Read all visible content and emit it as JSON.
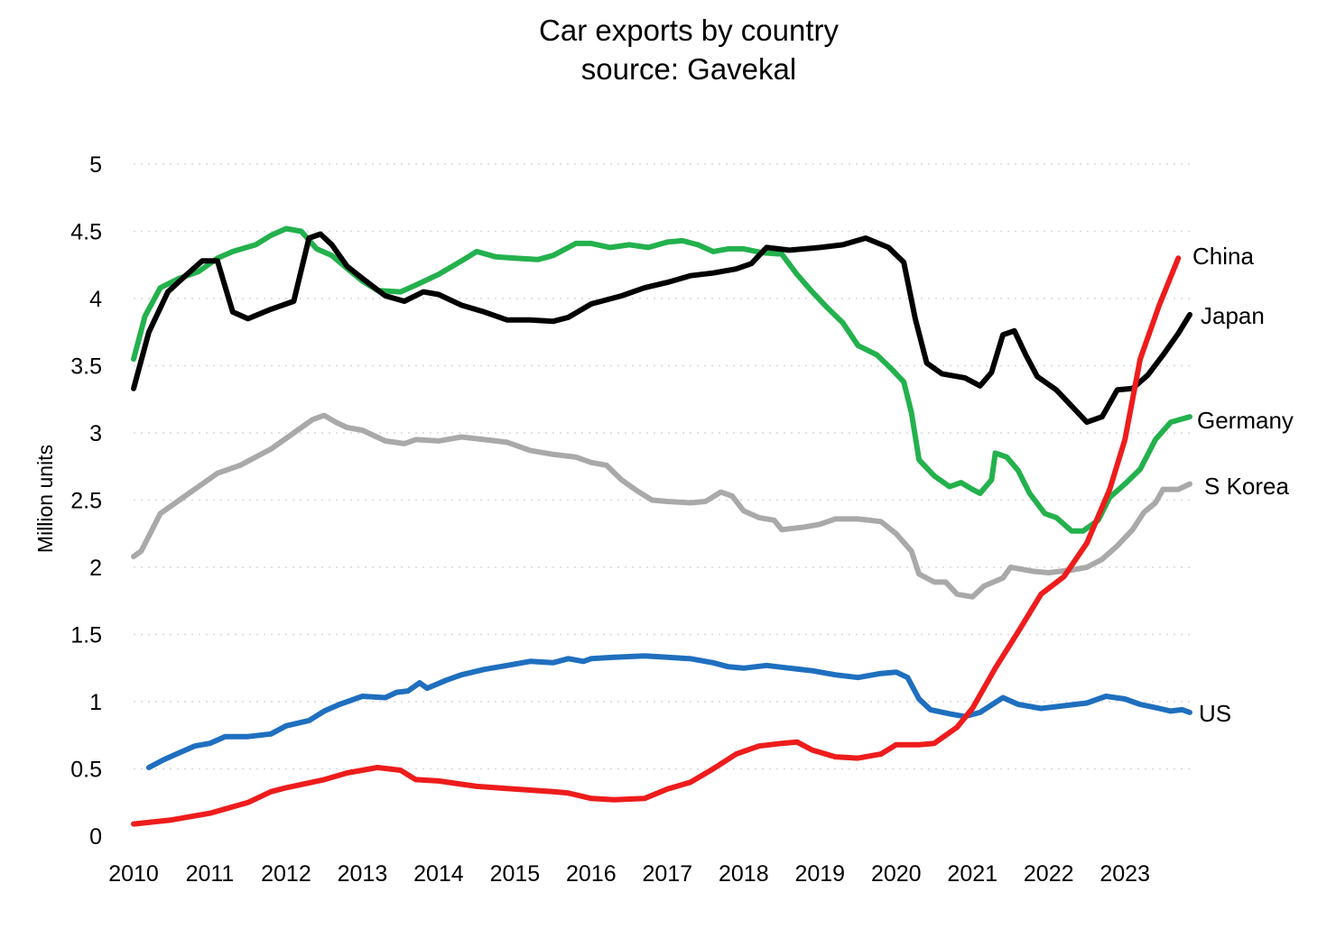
{
  "chart_data": {
    "type": "line",
    "title": "Car exports by country",
    "subtitle": "source: Gavekal",
    "xlabel": "",
    "ylabel": "Million units",
    "xlim": [
      2010,
      2023.85
    ],
    "ylim": [
      0,
      5
    ],
    "grid": true,
    "legend": "none (series labels at line ends)",
    "x_ticks": [
      "2010",
      "2011",
      "2012",
      "2013",
      "2014",
      "2015",
      "2016",
      "2017",
      "2018",
      "2019",
      "2020",
      "2021",
      "2022",
      "2023"
    ],
    "y_ticks": [
      "0",
      "0.5",
      "1",
      "1.5",
      "2",
      "2.5",
      "3",
      "3.5",
      "4",
      "4.5",
      "5"
    ],
    "series": [
      {
        "name": "China",
        "color": "#ee1c1c",
        "points": [
          [
            2010.0,
            0.09
          ],
          [
            2010.5,
            0.12
          ],
          [
            2011.0,
            0.17
          ],
          [
            2011.5,
            0.25
          ],
          [
            2011.8,
            0.33
          ],
          [
            2012.0,
            0.36
          ],
          [
            2012.5,
            0.42
          ],
          [
            2012.8,
            0.47
          ],
          [
            2013.2,
            0.51
          ],
          [
            2013.5,
            0.49
          ],
          [
            2013.7,
            0.42
          ],
          [
            2014.0,
            0.41
          ],
          [
            2014.5,
            0.37
          ],
          [
            2015.0,
            0.35
          ],
          [
            2015.5,
            0.33
          ],
          [
            2015.7,
            0.32
          ],
          [
            2016.0,
            0.28
          ],
          [
            2016.3,
            0.27
          ],
          [
            2016.7,
            0.28
          ],
          [
            2017.0,
            0.35
          ],
          [
            2017.3,
            0.4
          ],
          [
            2017.6,
            0.5
          ],
          [
            2017.9,
            0.61
          ],
          [
            2018.2,
            0.67
          ],
          [
            2018.5,
            0.69
          ],
          [
            2018.7,
            0.7
          ],
          [
            2018.9,
            0.64
          ],
          [
            2019.2,
            0.59
          ],
          [
            2019.5,
            0.58
          ],
          [
            2019.8,
            0.61
          ],
          [
            2020.0,
            0.68
          ],
          [
            2020.3,
            0.68
          ],
          [
            2020.5,
            0.69
          ],
          [
            2020.8,
            0.81
          ],
          [
            2021.0,
            0.95
          ],
          [
            2021.3,
            1.25
          ],
          [
            2021.6,
            1.52
          ],
          [
            2021.9,
            1.8
          ],
          [
            2022.2,
            1.93
          ],
          [
            2022.5,
            2.18
          ],
          [
            2022.8,
            2.58
          ],
          [
            2023.0,
            2.95
          ],
          [
            2023.2,
            3.55
          ],
          [
            2023.45,
            3.95
          ],
          [
            2023.7,
            4.3
          ]
        ]
      },
      {
        "name": "Japan",
        "color": "#000000",
        "points": [
          [
            2010.0,
            3.33
          ],
          [
            2010.2,
            3.75
          ],
          [
            2010.45,
            4.05
          ],
          [
            2010.7,
            4.18
          ],
          [
            2010.9,
            4.28
          ],
          [
            2011.1,
            4.28
          ],
          [
            2011.3,
            3.9
          ],
          [
            2011.5,
            3.85
          ],
          [
            2011.8,
            3.92
          ],
          [
            2012.1,
            3.98
          ],
          [
            2012.3,
            4.45
          ],
          [
            2012.45,
            4.48
          ],
          [
            2012.6,
            4.4
          ],
          [
            2012.8,
            4.24
          ],
          [
            2013.0,
            4.15
          ],
          [
            2013.3,
            4.02
          ],
          [
            2013.55,
            3.98
          ],
          [
            2013.8,
            4.05
          ],
          [
            2014.0,
            4.03
          ],
          [
            2014.3,
            3.95
          ],
          [
            2014.6,
            3.9
          ],
          [
            2014.9,
            3.84
          ],
          [
            2015.2,
            3.84
          ],
          [
            2015.5,
            3.83
          ],
          [
            2015.7,
            3.86
          ],
          [
            2016.0,
            3.96
          ],
          [
            2016.4,
            4.02
          ],
          [
            2016.7,
            4.08
          ],
          [
            2017.0,
            4.12
          ],
          [
            2017.3,
            4.17
          ],
          [
            2017.6,
            4.19
          ],
          [
            2017.9,
            4.22
          ],
          [
            2018.1,
            4.26
          ],
          [
            2018.3,
            4.38
          ],
          [
            2018.6,
            4.36
          ],
          [
            2019.0,
            4.38
          ],
          [
            2019.3,
            4.4
          ],
          [
            2019.6,
            4.45
          ],
          [
            2019.9,
            4.38
          ],
          [
            2020.1,
            4.27
          ],
          [
            2020.25,
            3.85
          ],
          [
            2020.4,
            3.52
          ],
          [
            2020.6,
            3.44
          ],
          [
            2020.9,
            3.41
          ],
          [
            2021.1,
            3.35
          ],
          [
            2021.25,
            3.45
          ],
          [
            2021.4,
            3.73
          ],
          [
            2021.55,
            3.76
          ],
          [
            2021.7,
            3.58
          ],
          [
            2021.85,
            3.42
          ],
          [
            2022.1,
            3.32
          ],
          [
            2022.3,
            3.2
          ],
          [
            2022.5,
            3.08
          ],
          [
            2022.7,
            3.12
          ],
          [
            2022.9,
            3.32
          ],
          [
            2023.1,
            3.33
          ],
          [
            2023.3,
            3.43
          ],
          [
            2023.5,
            3.58
          ],
          [
            2023.7,
            3.74
          ],
          [
            2023.85,
            3.88
          ]
        ]
      },
      {
        "name": "Germany",
        "color": "#23b14d",
        "points": [
          [
            2010.0,
            3.55
          ],
          [
            2010.15,
            3.87
          ],
          [
            2010.35,
            4.08
          ],
          [
            2010.6,
            4.15
          ],
          [
            2010.85,
            4.2
          ],
          [
            2011.1,
            4.3
          ],
          [
            2011.3,
            4.35
          ],
          [
            2011.6,
            4.4
          ],
          [
            2011.8,
            4.47
          ],
          [
            2012.0,
            4.52
          ],
          [
            2012.2,
            4.5
          ],
          [
            2012.4,
            4.37
          ],
          [
            2012.6,
            4.32
          ],
          [
            2012.85,
            4.2
          ],
          [
            2013.0,
            4.13
          ],
          [
            2013.2,
            4.06
          ],
          [
            2013.5,
            4.05
          ],
          [
            2013.7,
            4.1
          ],
          [
            2014.0,
            4.18
          ],
          [
            2014.3,
            4.28
          ],
          [
            2014.5,
            4.35
          ],
          [
            2014.75,
            4.31
          ],
          [
            2015.0,
            4.3
          ],
          [
            2015.3,
            4.29
          ],
          [
            2015.5,
            4.32
          ],
          [
            2015.8,
            4.41
          ],
          [
            2016.0,
            4.41
          ],
          [
            2016.25,
            4.38
          ],
          [
            2016.5,
            4.4
          ],
          [
            2016.75,
            4.38
          ],
          [
            2017.0,
            4.42
          ],
          [
            2017.2,
            4.43
          ],
          [
            2017.4,
            4.4
          ],
          [
            2017.6,
            4.35
          ],
          [
            2017.8,
            4.37
          ],
          [
            2018.0,
            4.37
          ],
          [
            2018.25,
            4.34
          ],
          [
            2018.5,
            4.33
          ],
          [
            2018.7,
            4.18
          ],
          [
            2018.9,
            4.05
          ],
          [
            2019.1,
            3.93
          ],
          [
            2019.3,
            3.82
          ],
          [
            2019.5,
            3.65
          ],
          [
            2019.75,
            3.58
          ],
          [
            2019.95,
            3.47
          ],
          [
            2020.1,
            3.38
          ],
          [
            2020.2,
            3.15
          ],
          [
            2020.3,
            2.8
          ],
          [
            2020.5,
            2.68
          ],
          [
            2020.7,
            2.6
          ],
          [
            2020.85,
            2.63
          ],
          [
            2021.0,
            2.58
          ],
          [
            2021.1,
            2.55
          ],
          [
            2021.25,
            2.65
          ],
          [
            2021.3,
            2.85
          ],
          [
            2021.45,
            2.82
          ],
          [
            2021.6,
            2.72
          ],
          [
            2021.75,
            2.55
          ],
          [
            2021.95,
            2.4
          ],
          [
            2022.1,
            2.37
          ],
          [
            2022.3,
            2.27
          ],
          [
            2022.45,
            2.27
          ],
          [
            2022.65,
            2.35
          ],
          [
            2022.8,
            2.52
          ],
          [
            2023.0,
            2.62
          ],
          [
            2023.2,
            2.73
          ],
          [
            2023.4,
            2.95
          ],
          [
            2023.6,
            3.08
          ],
          [
            2023.85,
            3.12
          ]
        ]
      },
      {
        "name": "S Korea",
        "color": "#a9a9a9",
        "points": [
          [
            2010.0,
            2.08
          ],
          [
            2010.1,
            2.12
          ],
          [
            2010.35,
            2.4
          ],
          [
            2010.6,
            2.5
          ],
          [
            2010.8,
            2.58
          ],
          [
            2011.0,
            2.66
          ],
          [
            2011.1,
            2.7
          ],
          [
            2011.4,
            2.76
          ],
          [
            2011.6,
            2.82
          ],
          [
            2011.8,
            2.88
          ],
          [
            2012.0,
            2.96
          ],
          [
            2012.2,
            3.04
          ],
          [
            2012.35,
            3.1
          ],
          [
            2012.5,
            3.13
          ],
          [
            2012.65,
            3.08
          ],
          [
            2012.8,
            3.04
          ],
          [
            2013.0,
            3.02
          ],
          [
            2013.3,
            2.94
          ],
          [
            2013.55,
            2.92
          ],
          [
            2013.7,
            2.95
          ],
          [
            2014.0,
            2.94
          ],
          [
            2014.3,
            2.97
          ],
          [
            2014.6,
            2.95
          ],
          [
            2014.9,
            2.93
          ],
          [
            2015.2,
            2.87
          ],
          [
            2015.5,
            2.84
          ],
          [
            2015.8,
            2.82
          ],
          [
            2016.0,
            2.78
          ],
          [
            2016.2,
            2.76
          ],
          [
            2016.4,
            2.65
          ],
          [
            2016.6,
            2.57
          ],
          [
            2016.8,
            2.5
          ],
          [
            2017.0,
            2.49
          ],
          [
            2017.3,
            2.48
          ],
          [
            2017.5,
            2.49
          ],
          [
            2017.7,
            2.56
          ],
          [
            2017.85,
            2.53
          ],
          [
            2018.0,
            2.42
          ],
          [
            2018.2,
            2.37
          ],
          [
            2018.4,
            2.35
          ],
          [
            2018.5,
            2.28
          ],
          [
            2018.8,
            2.3
          ],
          [
            2019.0,
            2.32
          ],
          [
            2019.2,
            2.36
          ],
          [
            2019.5,
            2.36
          ],
          [
            2019.8,
            2.34
          ],
          [
            2020.0,
            2.25
          ],
          [
            2020.2,
            2.12
          ],
          [
            2020.3,
            1.95
          ],
          [
            2020.5,
            1.89
          ],
          [
            2020.65,
            1.89
          ],
          [
            2020.8,
            1.8
          ],
          [
            2021.0,
            1.78
          ],
          [
            2021.15,
            1.86
          ],
          [
            2021.4,
            1.92
          ],
          [
            2021.5,
            2.0
          ],
          [
            2021.8,
            1.97
          ],
          [
            2022.0,
            1.96
          ],
          [
            2022.3,
            1.98
          ],
          [
            2022.5,
            2.0
          ],
          [
            2022.7,
            2.06
          ],
          [
            2022.9,
            2.16
          ],
          [
            2023.1,
            2.28
          ],
          [
            2023.25,
            2.41
          ],
          [
            2023.4,
            2.48
          ],
          [
            2023.5,
            2.58
          ],
          [
            2023.7,
            2.58
          ],
          [
            2023.85,
            2.62
          ]
        ]
      },
      {
        "name": "US",
        "color": "#1f6fbf",
        "points": [
          [
            2010.2,
            0.51
          ],
          [
            2010.4,
            0.57
          ],
          [
            2010.6,
            0.62
          ],
          [
            2010.8,
            0.67
          ],
          [
            2011.0,
            0.69
          ],
          [
            2011.2,
            0.74
          ],
          [
            2011.5,
            0.74
          ],
          [
            2011.8,
            0.76
          ],
          [
            2012.0,
            0.82
          ],
          [
            2012.3,
            0.86
          ],
          [
            2012.5,
            0.93
          ],
          [
            2012.7,
            0.98
          ],
          [
            2013.0,
            1.04
          ],
          [
            2013.3,
            1.03
          ],
          [
            2013.45,
            1.07
          ],
          [
            2013.6,
            1.08
          ],
          [
            2013.75,
            1.14
          ],
          [
            2013.85,
            1.1
          ],
          [
            2014.1,
            1.16
          ],
          [
            2014.3,
            1.2
          ],
          [
            2014.6,
            1.24
          ],
          [
            2014.9,
            1.27
          ],
          [
            2015.2,
            1.3
          ],
          [
            2015.5,
            1.29
          ],
          [
            2015.7,
            1.32
          ],
          [
            2015.9,
            1.3
          ],
          [
            2016.0,
            1.32
          ],
          [
            2016.3,
            1.33
          ],
          [
            2016.7,
            1.34
          ],
          [
            2017.0,
            1.33
          ],
          [
            2017.3,
            1.32
          ],
          [
            2017.6,
            1.29
          ],
          [
            2017.8,
            1.26
          ],
          [
            2018.0,
            1.25
          ],
          [
            2018.3,
            1.27
          ],
          [
            2018.6,
            1.25
          ],
          [
            2018.9,
            1.23
          ],
          [
            2019.2,
            1.2
          ],
          [
            2019.5,
            1.18
          ],
          [
            2019.8,
            1.21
          ],
          [
            2020.0,
            1.22
          ],
          [
            2020.15,
            1.18
          ],
          [
            2020.3,
            1.02
          ],
          [
            2020.45,
            0.94
          ],
          [
            2020.7,
            0.91
          ],
          [
            2020.9,
            0.89
          ],
          [
            2021.1,
            0.92
          ],
          [
            2021.4,
            1.03
          ],
          [
            2021.6,
            0.98
          ],
          [
            2021.9,
            0.95
          ],
          [
            2022.2,
            0.97
          ],
          [
            2022.5,
            0.99
          ],
          [
            2022.75,
            1.04
          ],
          [
            2023.0,
            1.02
          ],
          [
            2023.2,
            0.98
          ],
          [
            2023.45,
            0.95
          ],
          [
            2023.6,
            0.93
          ],
          [
            2023.75,
            0.94
          ],
          [
            2023.85,
            0.92
          ]
        ]
      }
    ]
  }
}
